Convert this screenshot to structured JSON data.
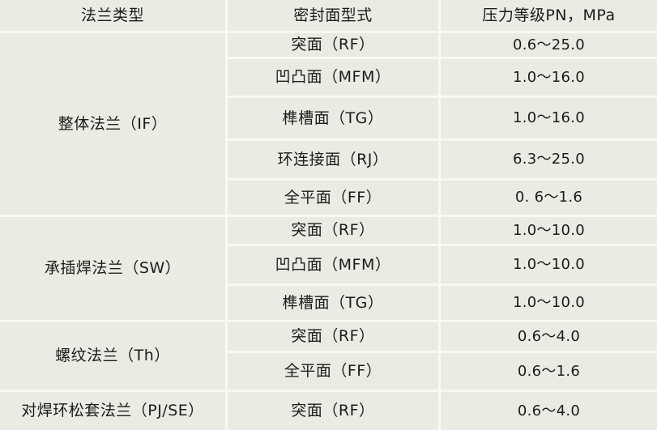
{
  "header": {
    "flange": "法兰类型",
    "seal": "密封面型式",
    "pressure": "压力等级PN，MPa"
  },
  "sections": [
    {
      "flange": "整体法兰（IF）",
      "rows": [
        {
          "seal": "突面（RF）",
          "pn": "0.6～25.0"
        },
        {
          "seal": "凹凸面（MFM）",
          "pn": "1.0～16.0"
        },
        {
          "seal": "榫槽面（TG）",
          "pn": "1.0～16.0"
        },
        {
          "seal": "环连接面（RJ）",
          "pn": "6.3～25.0"
        },
        {
          "seal": "全平面（FF）",
          "pn": "0. 6～1.6"
        }
      ]
    },
    {
      "flange": "承插焊法兰（SW）",
      "rows": [
        {
          "seal": "突面（RF）",
          "pn": "1.0～10.0"
        },
        {
          "seal": "凹凸面（MFM）",
          "pn": "1.0～10.0"
        },
        {
          "seal": "榫槽面（TG）",
          "pn": "1.0～10.0"
        }
      ]
    },
    {
      "flange": "螺纹法兰（Th）",
      "rows": [
        {
          "seal": "突面（RF）",
          "pn": "0.6～4.0"
        },
        {
          "seal": "全平面（FF）",
          "pn": "0.6～1.6"
        }
      ]
    },
    {
      "flange": "对焊环松套法兰（PJ/SE）",
      "rows": [
        {
          "seal": "突面（RF）",
          "pn": "0.6～4.0"
        }
      ]
    }
  ],
  "colors": {
    "cell_background": "#e9ece3",
    "gridline": "#f8faf2",
    "text": "#1c1c1c"
  }
}
